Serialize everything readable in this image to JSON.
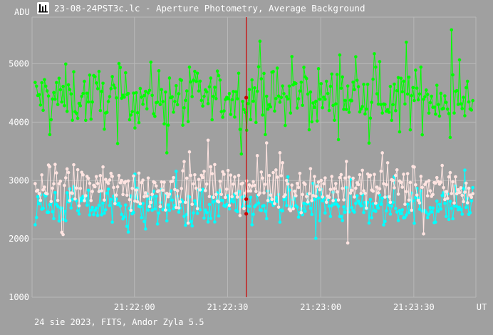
{
  "window": {
    "title": "23-08-24PST3c.lc - Aperture Photometry, Average Background",
    "icon": "chart-icon"
  },
  "footer": "24 sie 2023, FITS, Andor Zyla 5.5",
  "colors": {
    "background": "#a0a0a0",
    "grid": "#b8b8b8",
    "series_top": "#00ff00",
    "series_mid": "#ffe4e1",
    "series_low": "#00ffff",
    "cursor": "#cc0000"
  },
  "chart_data": {
    "type": "scatter",
    "title": "23-08-24PST3c.lc - Aperture Photometry, Average Background",
    "ylabel": "ADU",
    "xlabel": "UT",
    "ylim": [
      1000,
      5800
    ],
    "xlim": [
      "21:21:27",
      "21:23:50"
    ],
    "grid": true,
    "y_ticks": [
      "1000",
      "2000",
      "3000",
      "4000",
      "5000"
    ],
    "x_ticks": [
      "21:22:00",
      "21:22:30",
      "21:23:00",
      "21:23:30"
    ],
    "cursor_x": "21:22:36",
    "series": [
      {
        "color": "#00ff00",
        "mean": 4430,
        "spread": 330,
        "note": "background values near 4400 ADU"
      },
      {
        "color": "#ffe4e1",
        "mean": 2880,
        "spread": 260
      },
      {
        "color": "#00ffff",
        "mean": 2560,
        "spread": 210
      }
    ],
    "cursor_points": [
      4420,
      2680,
      2430
    ]
  }
}
